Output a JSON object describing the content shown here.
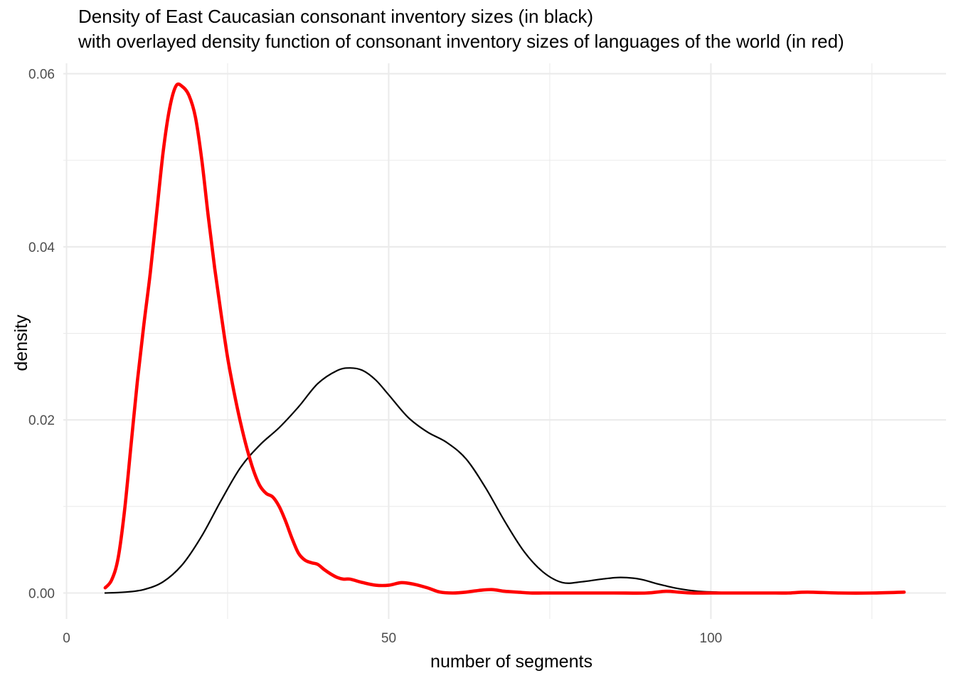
{
  "chart_data": {
    "type": "line",
    "title": "Density of East Caucasian consonant inventory sizes (in black)",
    "subtitle": "with overlayed density function of consonant inventory sizes of languages of the world (in red)",
    "xlabel": "number of segments",
    "ylabel": "density",
    "xlim": [
      -0.5,
      136.5
    ],
    "ylim": [
      -0.003,
      0.0612
    ],
    "x_ticks": [
      0,
      50,
      100
    ],
    "x_tick_labels": [
      "0",
      "50",
      "100"
    ],
    "x_minor_ticks": [
      25,
      75,
      125
    ],
    "y_ticks": [
      0.0,
      0.02,
      0.04,
      0.06
    ],
    "y_tick_labels": [
      "0.00",
      "0.02",
      "0.04",
      "0.06"
    ],
    "y_minor_ticks": [
      0.01,
      0.03,
      0.05
    ],
    "grid": true,
    "legend": "none",
    "series": [
      {
        "color": "#000000",
        "x": [
          6,
          9,
          12,
          15,
          18,
          21,
          24,
          27,
          30,
          33,
          36,
          39,
          42,
          44,
          46,
          48,
          50,
          53,
          56,
          59,
          62,
          65,
          68,
          71,
          74,
          77,
          80,
          83,
          86,
          89,
          92,
          95,
          98,
          101,
          104,
          107,
          110
        ],
        "values": [
          0.0,
          0.0001,
          0.0004,
          0.0013,
          0.0033,
          0.0066,
          0.0107,
          0.0145,
          0.0171,
          0.0191,
          0.0215,
          0.0242,
          0.0257,
          0.026,
          0.0257,
          0.0246,
          0.0229,
          0.0203,
          0.0186,
          0.0174,
          0.0155,
          0.0122,
          0.0083,
          0.0048,
          0.0024,
          0.0012,
          0.0013,
          0.0016,
          0.0018,
          0.0016,
          0.001,
          0.0005,
          0.0002,
          0.0001,
          0.0,
          0.0,
          0.0
        ]
      },
      {
        "color": "#ff0000",
        "x": [
          6,
          7,
          8,
          9,
          10,
          11,
          12,
          13,
          14,
          15,
          16,
          17,
          18,
          19,
          20,
          21,
          22,
          23,
          24,
          25,
          26,
          27,
          28,
          29,
          30,
          31,
          32,
          33,
          34,
          35,
          36,
          37,
          38,
          39,
          40,
          41,
          42,
          43,
          44,
          46,
          48,
          50,
          52,
          54,
          56,
          58,
          60,
          62,
          64,
          66,
          68,
          70,
          72,
          74,
          76,
          78,
          80,
          85,
          90,
          93,
          95,
          97,
          100,
          105,
          110,
          112,
          115,
          120,
          125,
          130
        ],
        "values": [
          0.0006,
          0.0015,
          0.004,
          0.0095,
          0.017,
          0.0245,
          0.031,
          0.037,
          0.044,
          0.051,
          0.056,
          0.0586,
          0.0585,
          0.0575,
          0.055,
          0.05,
          0.0435,
          0.0375,
          0.0322,
          0.0272,
          0.0232,
          0.0197,
          0.0167,
          0.0142,
          0.0124,
          0.0115,
          0.0111,
          0.01,
          0.0083,
          0.0063,
          0.0046,
          0.0038,
          0.0035,
          0.0033,
          0.0027,
          0.0022,
          0.0018,
          0.0016,
          0.0016,
          0.0012,
          0.0009,
          0.0009,
          0.0012,
          0.001,
          0.0006,
          0.0001,
          0.0,
          0.0001,
          0.0003,
          0.0004,
          0.0002,
          0.0001,
          0.0,
          0.0,
          0.0,
          0.0,
          0.0,
          0.0,
          0.0,
          0.0002,
          0.0001,
          0.0,
          0.0,
          0.0,
          0.0,
          0.0,
          0.0001,
          0.0,
          0.0,
          0.0001
        ]
      }
    ]
  }
}
